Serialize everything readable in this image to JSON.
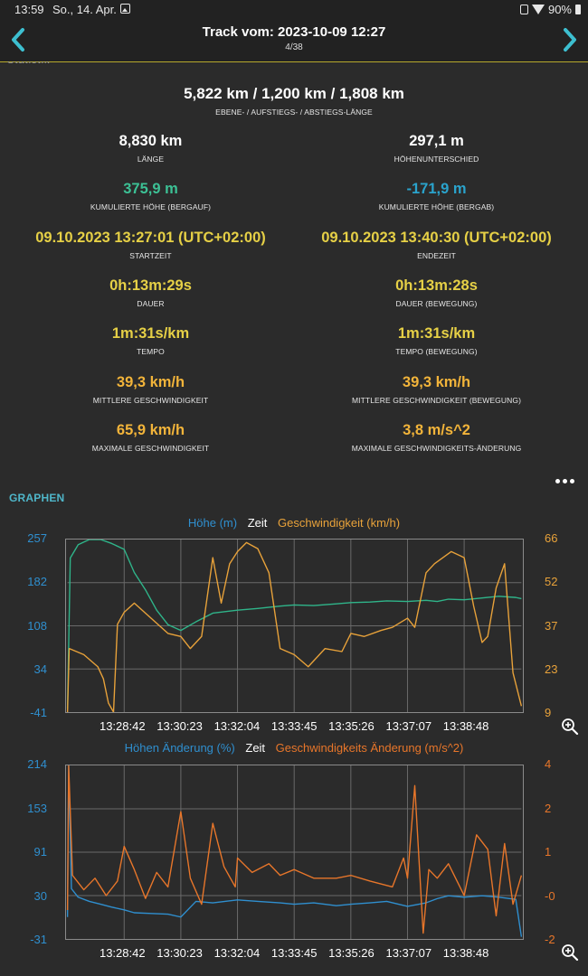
{
  "status_bar": {
    "time": "13:59",
    "date": "So., 14. Apr.",
    "battery": "90%",
    "icons": [
      "image-icon",
      "lock-icon",
      "wifi-icon",
      "battery-icon"
    ]
  },
  "header": {
    "title": "Track vom: 2023-10-09 12:27",
    "subtitle": "4/38",
    "accent": "#b7a92c"
  },
  "lengths": {
    "value": "5,822 km / 1,200 km / 1,808 km",
    "label": "EBENE- / AUFSTIEGS- / ABSTIEGS-LÄNGE"
  },
  "stats": [
    {
      "value": "8,830 km",
      "label": "LÄNGE",
      "color": "white"
    },
    {
      "value": "297,1 m",
      "label": "HÖHENUNTERSCHIED",
      "color": "white"
    },
    {
      "value": "375,9 m",
      "label": "KUMULIERTE HÖHE (BERGAUF)",
      "color": "green"
    },
    {
      "value": "-171,9 m",
      "label": "KUMULIERTE HÖHE (BERGAB)",
      "color": "blue"
    },
    {
      "value": "09.10.2023 13:27:01 (UTC+02:00)",
      "label": "STARTZEIT",
      "color": "yellow"
    },
    {
      "value": "09.10.2023 13:40:30 (UTC+02:00)",
      "label": "ENDEZEIT",
      "color": "yellow"
    },
    {
      "value": "0h:13m:29s",
      "label": "DAUER",
      "color": "yellow"
    },
    {
      "value": "0h:13m:28s",
      "label": "DAUER (BEWEGUNG)",
      "color": "yellow"
    },
    {
      "value": "1m:31s/km",
      "label": "TEMPO",
      "color": "yellow"
    },
    {
      "value": "1m:31s/km",
      "label": "TEMPO (BEWEGUNG)",
      "color": "yellow"
    },
    {
      "value": "39,3 km/h",
      "label": "MITTLERE GESCHWINDIGKEIT",
      "color": "orange"
    },
    {
      "value": "39,3 km/h",
      "label": "MITTLERE GESCHWINDIGKEIT (BEWEGUNG)",
      "color": "orange"
    },
    {
      "value": "65,9 km/h",
      "label": "MAXIMALE GESCHWINDIGKEIT",
      "color": "orange"
    },
    {
      "value": "3,8 m/s^2",
      "label": "MAXIMALE GESCHWINDIGKEITS-ÄNDERUNG",
      "color": "orange"
    }
  ],
  "graphs_title": "GRAPHEN",
  "colors": {
    "left_axis": "#2f8fcf",
    "right_axis": "#e8a23a",
    "elevation": "#2fb58a",
    "speed": "#e8a23a",
    "grade_line": "#2f8fcf",
    "accel_line": "#e8762a",
    "accel_axis": "#e8762a"
  },
  "chart_data": [
    {
      "type": "line",
      "legend": [
        "Höhe (m)",
        "Zeit",
        "Geschwindigkeit (km/h)"
      ],
      "x_ticks": [
        "13:28:42",
        "13:30:23",
        "13:32:04",
        "13:33:45",
        "13:35:26",
        "13:37:07",
        "13:38:48"
      ],
      "y_left_ticks": [
        "257",
        "182",
        "108",
        "34",
        "-41"
      ],
      "y_right_ticks": [
        "66",
        "52",
        "37",
        "23",
        "9"
      ],
      "ylim_left": [
        -41,
        257
      ],
      "ylim_right": [
        9,
        66
      ],
      "grid": true,
      "series": [
        {
          "name": "Höhe (m)",
          "axis": "left",
          "color": "elevation",
          "x": [
            "13:27:01",
            "13:27:06",
            "13:27:20",
            "13:27:40",
            "13:28:00",
            "13:28:20",
            "13:28:42",
            "13:29:00",
            "13:29:20",
            "13:29:40",
            "13:30:00",
            "13:30:23",
            "13:30:50",
            "13:31:20",
            "13:32:04",
            "13:32:40",
            "13:33:20",
            "13:33:45",
            "13:34:20",
            "13:35:00",
            "13:35:26",
            "13:36:00",
            "13:36:30",
            "13:37:07",
            "13:37:40",
            "13:38:00",
            "13:38:20",
            "13:38:48",
            "13:39:20",
            "13:39:50",
            "13:40:20",
            "13:40:30"
          ],
          "values": [
            -35,
            225,
            248,
            260,
            261,
            250,
            240,
            200,
            170,
            135,
            110,
            100,
            115,
            130,
            135,
            138,
            142,
            144,
            143,
            146,
            148,
            149,
            151,
            150,
            152,
            150,
            154,
            153,
            156,
            159,
            157,
            155
          ]
        },
        {
          "name": "Geschwindigkeit (km/h)",
          "axis": "right",
          "color": "speed",
          "x": [
            "13:27:01",
            "13:27:04",
            "13:27:30",
            "13:27:55",
            "13:28:05",
            "13:28:14",
            "13:28:23",
            "13:28:30",
            "13:28:42",
            "13:29:00",
            "13:29:30",
            "13:30:00",
            "13:30:23",
            "13:30:40",
            "13:31:00",
            "13:31:20",
            "13:31:35",
            "13:31:50",
            "13:32:04",
            "13:32:20",
            "13:32:40",
            "13:33:00",
            "13:33:20",
            "13:33:45",
            "13:34:10",
            "13:34:40",
            "13:35:10",
            "13:35:26",
            "13:35:50",
            "13:36:20",
            "13:36:40",
            "13:37:07",
            "13:37:20",
            "13:37:40",
            "13:37:55",
            "13:38:10",
            "13:38:25",
            "13:38:48",
            "13:39:05",
            "13:39:20",
            "13:39:30",
            "13:39:45",
            "13:40:00",
            "13:40:15",
            "13:40:30"
          ],
          "values": [
            9,
            30,
            28,
            24,
            20,
            12,
            8,
            38,
            42,
            45,
            40,
            35,
            34,
            30,
            34,
            60,
            45,
            58,
            62,
            65,
            63,
            55,
            30,
            28,
            24,
            30,
            29,
            35,
            34,
            36,
            37,
            40,
            37,
            55,
            58,
            60,
            62,
            60,
            44,
            32,
            34,
            50,
            58,
            22,
            11
          ]
        }
      ]
    },
    {
      "type": "line",
      "legend": [
        "Höhen Änderung (%)",
        "Zeit",
        "Geschwindigkeits Änderung (m/s^2)"
      ],
      "x_ticks": [
        "13:28:42",
        "13:30:23",
        "13:32:04",
        "13:33:45",
        "13:35:26",
        "13:37:07",
        "13:38:48"
      ],
      "y_left_ticks": [
        "214",
        "153",
        "91",
        "30",
        "-31"
      ],
      "y_right_ticks": [
        "4",
        "2",
        "1",
        "-0",
        "-2"
      ],
      "ylim_left": [
        -31,
        214
      ],
      "ylim_right": [
        -2,
        4
      ],
      "grid": true,
      "series": [
        {
          "name": "Höhen Änderung (%)",
          "axis": "left",
          "color": "grade_line",
          "x": [
            "13:27:01",
            "13:27:03",
            "13:27:08",
            "13:27:20",
            "13:27:40",
            "13:28:00",
            "13:28:20",
            "13:28:42",
            "13:29:00",
            "13:29:30",
            "13:30:00",
            "13:30:23",
            "13:30:50",
            "13:31:20",
            "13:32:04",
            "13:32:40",
            "13:33:20",
            "13:33:45",
            "13:34:20",
            "13:35:00",
            "13:35:26",
            "13:36:00",
            "13:36:30",
            "13:37:07",
            "13:37:40",
            "13:38:00",
            "13:38:20",
            "13:38:48",
            "13:39:20",
            "13:39:50",
            "13:40:20",
            "13:40:30"
          ],
          "values": [
            0,
            214,
            40,
            28,
            22,
            18,
            14,
            10,
            6,
            5,
            4,
            0,
            22,
            20,
            24,
            22,
            20,
            18,
            20,
            16,
            18,
            20,
            22,
            15,
            20,
            26,
            30,
            28,
            30,
            28,
            25,
            -28
          ]
        },
        {
          "name": "Geschwindigkeits Änderung (m/s^2)",
          "axis": "right",
          "color": "accel_line",
          "x": [
            "13:27:01",
            "13:27:03",
            "13:27:10",
            "13:27:30",
            "13:27:50",
            "13:28:10",
            "13:28:30",
            "13:28:42",
            "13:29:00",
            "13:29:20",
            "13:29:40",
            "13:30:00",
            "13:30:23",
            "13:30:40",
            "13:31:00",
            "13:31:20",
            "13:31:40",
            "13:32:00",
            "13:32:04",
            "13:32:30",
            "13:33:00",
            "13:33:20",
            "13:33:45",
            "13:34:20",
            "13:35:00",
            "13:35:26",
            "13:36:00",
            "13:36:40",
            "13:37:00",
            "13:37:07",
            "13:37:20",
            "13:37:35",
            "13:37:45",
            "13:38:00",
            "13:38:20",
            "13:38:48",
            "13:39:10",
            "13:39:30",
            "13:39:45",
            "13:40:00",
            "13:40:15",
            "13:40:30"
          ],
          "values": [
            -1,
            4,
            0.2,
            -0.3,
            0.1,
            -0.5,
            0,
            1.2,
            0.4,
            -0.6,
            0.3,
            -0.2,
            2.4,
            0.1,
            -0.8,
            2.0,
            0.5,
            -0.2,
            0.8,
            0.3,
            0.6,
            0.2,
            0.4,
            0.1,
            0.1,
            0.2,
            0.0,
            -0.2,
            0.8,
            0.1,
            3.3,
            -1.8,
            0.4,
            0.1,
            0.6,
            -0.5,
            1.6,
            1.1,
            -1.2,
            1.3,
            -0.8,
            0.2
          ]
        }
      ]
    }
  ]
}
